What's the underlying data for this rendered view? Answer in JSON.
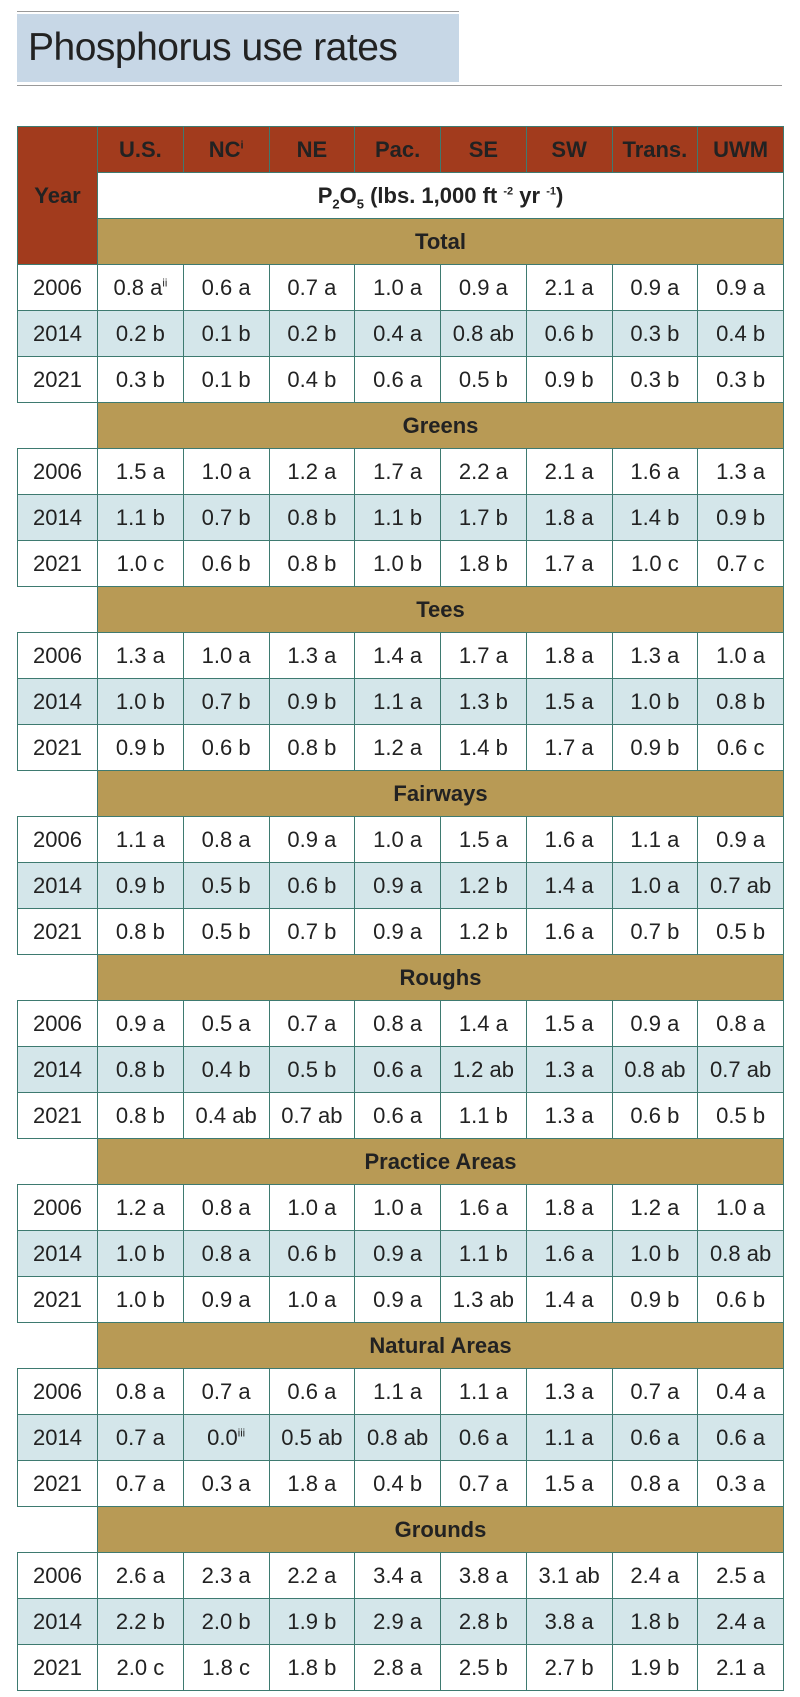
{
  "title": "Phosphorus use rates",
  "header": {
    "year_label": "Year",
    "regions": [
      {
        "label": "U.S.",
        "sup": ""
      },
      {
        "label": "NC",
        "sup": "i"
      },
      {
        "label": "NE",
        "sup": ""
      },
      {
        "label": "Pac.",
        "sup": ""
      },
      {
        "label": "SE",
        "sup": ""
      },
      {
        "label": "SW",
        "sup": ""
      },
      {
        "label": "Trans.",
        "sup": ""
      },
      {
        "label": "UWM",
        "sup": ""
      }
    ],
    "units": {
      "p": "P",
      "sub1": "2",
      "o": "O",
      "sub2": "5",
      "rest": " (lbs. 1,000 ft ",
      "exp1": "-2",
      "mid": " yr ",
      "exp2": "-1",
      "end": ")"
    }
  },
  "sections": [
    {
      "name": "Total",
      "rows": [
        {
          "year": "2006",
          "cells": [
            {
              "v": "0.8 a",
              "sup": "ii"
            },
            {
              "v": "0.6 a"
            },
            {
              "v": "0.7 a"
            },
            {
              "v": "1.0 a"
            },
            {
              "v": "0.9 a"
            },
            {
              "v": "2.1 a"
            },
            {
              "v": "0.9 a"
            },
            {
              "v": "0.9 a"
            }
          ]
        },
        {
          "year": "2014",
          "cells": [
            {
              "v": "0.2 b"
            },
            {
              "v": "0.1 b"
            },
            {
              "v": "0.2 b"
            },
            {
              "v": "0.4 a"
            },
            {
              "v": "0.8 ab"
            },
            {
              "v": "0.6 b"
            },
            {
              "v": "0.3 b"
            },
            {
              "v": "0.4 b"
            }
          ]
        },
        {
          "year": "2021",
          "cells": [
            {
              "v": "0.3 b"
            },
            {
              "v": "0.1 b"
            },
            {
              "v": "0.4 b"
            },
            {
              "v": "0.6 a"
            },
            {
              "v": "0.5 b"
            },
            {
              "v": "0.9 b"
            },
            {
              "v": "0.3 b"
            },
            {
              "v": "0.3 b"
            }
          ]
        }
      ]
    },
    {
      "name": "Greens",
      "rows": [
        {
          "year": "2006",
          "cells": [
            {
              "v": "1.5 a"
            },
            {
              "v": "1.0 a"
            },
            {
              "v": "1.2 a"
            },
            {
              "v": "1.7 a"
            },
            {
              "v": "2.2 a"
            },
            {
              "v": "2.1 a"
            },
            {
              "v": "1.6 a"
            },
            {
              "v": "1.3 a"
            }
          ]
        },
        {
          "year": "2014",
          "cells": [
            {
              "v": "1.1 b"
            },
            {
              "v": "0.7 b"
            },
            {
              "v": "0.8 b"
            },
            {
              "v": "1.1 b"
            },
            {
              "v": "1.7 b"
            },
            {
              "v": "1.8 a"
            },
            {
              "v": "1.4 b"
            },
            {
              "v": "0.9 b"
            }
          ]
        },
        {
          "year": "2021",
          "cells": [
            {
              "v": "1.0 c"
            },
            {
              "v": "0.6 b"
            },
            {
              "v": "0.8 b"
            },
            {
              "v": "1.0 b"
            },
            {
              "v": "1.8 b"
            },
            {
              "v": "1.7 a"
            },
            {
              "v": "1.0 c"
            },
            {
              "v": "0.7 c"
            }
          ]
        }
      ]
    },
    {
      "name": "Tees",
      "rows": [
        {
          "year": "2006",
          "cells": [
            {
              "v": "1.3 a"
            },
            {
              "v": "1.0 a"
            },
            {
              "v": "1.3 a"
            },
            {
              "v": "1.4 a"
            },
            {
              "v": "1.7 a"
            },
            {
              "v": "1.8 a"
            },
            {
              "v": "1.3 a"
            },
            {
              "v": "1.0 a"
            }
          ]
        },
        {
          "year": "2014",
          "cells": [
            {
              "v": "1.0 b"
            },
            {
              "v": "0.7 b"
            },
            {
              "v": "0.9 b"
            },
            {
              "v": "1.1 a"
            },
            {
              "v": "1.3 b"
            },
            {
              "v": "1.5 a"
            },
            {
              "v": "1.0 b"
            },
            {
              "v": "0.8 b"
            }
          ]
        },
        {
          "year": "2021",
          "cells": [
            {
              "v": "0.9 b"
            },
            {
              "v": "0.6 b"
            },
            {
              "v": "0.8 b"
            },
            {
              "v": "1.2 a"
            },
            {
              "v": "1.4 b"
            },
            {
              "v": "1.7 a"
            },
            {
              "v": "0.9 b"
            },
            {
              "v": "0.6 c"
            }
          ]
        }
      ]
    },
    {
      "name": "Fairways",
      "rows": [
        {
          "year": "2006",
          "cells": [
            {
              "v": "1.1 a"
            },
            {
              "v": "0.8 a"
            },
            {
              "v": "0.9 a"
            },
            {
              "v": "1.0 a"
            },
            {
              "v": "1.5 a"
            },
            {
              "v": "1.6 a"
            },
            {
              "v": "1.1 a"
            },
            {
              "v": "0.9 a"
            }
          ]
        },
        {
          "year": "2014",
          "cells": [
            {
              "v": "0.9 b"
            },
            {
              "v": "0.5 b"
            },
            {
              "v": "0.6 b"
            },
            {
              "v": "0.9 a"
            },
            {
              "v": "1.2 b"
            },
            {
              "v": "1.4 a"
            },
            {
              "v": "1.0 a"
            },
            {
              "v": "0.7 ab"
            }
          ]
        },
        {
          "year": "2021",
          "cells": [
            {
              "v": "0.8 b"
            },
            {
              "v": "0.5 b"
            },
            {
              "v": "0.7 b"
            },
            {
              "v": "0.9 a"
            },
            {
              "v": "1.2 b"
            },
            {
              "v": "1.6 a"
            },
            {
              "v": "0.7 b"
            },
            {
              "v": "0.5 b"
            }
          ]
        }
      ]
    },
    {
      "name": "Roughs",
      "rows": [
        {
          "year": "2006",
          "cells": [
            {
              "v": "0.9 a"
            },
            {
              "v": "0.5 a"
            },
            {
              "v": "0.7 a"
            },
            {
              "v": "0.8 a"
            },
            {
              "v": "1.4 a"
            },
            {
              "v": "1.5 a"
            },
            {
              "v": "0.9 a"
            },
            {
              "v": "0.8 a"
            }
          ]
        },
        {
          "year": "2014",
          "cells": [
            {
              "v": "0.8 b"
            },
            {
              "v": "0.4 b"
            },
            {
              "v": "0.5 b"
            },
            {
              "v": "0.6 a"
            },
            {
              "v": "1.2 ab"
            },
            {
              "v": "1.3 a"
            },
            {
              "v": "0.8 ab"
            },
            {
              "v": "0.7 ab"
            }
          ]
        },
        {
          "year": "2021",
          "cells": [
            {
              "v": "0.8 b"
            },
            {
              "v": "0.4 ab"
            },
            {
              "v": "0.7 ab"
            },
            {
              "v": "0.6 a"
            },
            {
              "v": "1.1 b"
            },
            {
              "v": "1.3 a"
            },
            {
              "v": "0.6 b"
            },
            {
              "v": "0.5 b"
            }
          ]
        }
      ]
    },
    {
      "name": "Practice Areas",
      "rows": [
        {
          "year": "2006",
          "cells": [
            {
              "v": "1.2 a"
            },
            {
              "v": "0.8 a"
            },
            {
              "v": "1.0 a"
            },
            {
              "v": "1.0 a"
            },
            {
              "v": "1.6 a"
            },
            {
              "v": "1.8 a"
            },
            {
              "v": "1.2 a"
            },
            {
              "v": "1.0 a"
            }
          ]
        },
        {
          "year": "2014",
          "cells": [
            {
              "v": "1.0 b"
            },
            {
              "v": "0.8 a"
            },
            {
              "v": "0.6 b"
            },
            {
              "v": "0.9 a"
            },
            {
              "v": "1.1 b"
            },
            {
              "v": "1.6 a"
            },
            {
              "v": "1.0 b"
            },
            {
              "v": "0.8 ab"
            }
          ]
        },
        {
          "year": "2021",
          "cells": [
            {
              "v": "1.0 b"
            },
            {
              "v": "0.9 a"
            },
            {
              "v": "1.0 a"
            },
            {
              "v": "0.9 a"
            },
            {
              "v": "1.3 ab"
            },
            {
              "v": "1.4 a"
            },
            {
              "v": "0.9 b"
            },
            {
              "v": "0.6 b"
            }
          ]
        }
      ]
    },
    {
      "name": "Natural Areas",
      "rows": [
        {
          "year": "2006",
          "cells": [
            {
              "v": "0.8 a"
            },
            {
              "v": "0.7 a"
            },
            {
              "v": "0.6 a"
            },
            {
              "v": "1.1 a"
            },
            {
              "v": "1.1 a"
            },
            {
              "v": "1.3 a"
            },
            {
              "v": "0.7 a"
            },
            {
              "v": "0.4 a"
            }
          ]
        },
        {
          "year": "2014",
          "cells": [
            {
              "v": "0.7 a"
            },
            {
              "v": "0.0",
              "sup": "iii"
            },
            {
              "v": "0.5 ab"
            },
            {
              "v": "0.8 ab"
            },
            {
              "v": "0.6 a"
            },
            {
              "v": "1.1 a"
            },
            {
              "v": "0.6 a"
            },
            {
              "v": "0.6 a"
            }
          ]
        },
        {
          "year": "2021",
          "cells": [
            {
              "v": "0.7 a"
            },
            {
              "v": "0.3 a"
            },
            {
              "v": "1.8 a"
            },
            {
              "v": "0.4 b"
            },
            {
              "v": "0.7 a"
            },
            {
              "v": "1.5 a"
            },
            {
              "v": "0.8 a"
            },
            {
              "v": "0.3 a"
            }
          ]
        }
      ]
    },
    {
      "name": "Grounds",
      "rows": [
        {
          "year": "2006",
          "cells": [
            {
              "v": "2.6 a"
            },
            {
              "v": "2.3 a"
            },
            {
              "v": "2.2 a"
            },
            {
              "v": "3.4 a"
            },
            {
              "v": "3.8 a"
            },
            {
              "v": "3.1 ab"
            },
            {
              "v": "2.4 a"
            },
            {
              "v": "2.5 a"
            }
          ]
        },
        {
          "year": "2014",
          "cells": [
            {
              "v": "2.2 b"
            },
            {
              "v": "2.0 b"
            },
            {
              "v": "1.9 b"
            },
            {
              "v": "2.9 a"
            },
            {
              "v": "2.8 b"
            },
            {
              "v": "3.8 a"
            },
            {
              "v": "1.8 b"
            },
            {
              "v": "2.4 a"
            }
          ]
        },
        {
          "year": "2021",
          "cells": [
            {
              "v": "2.0 c"
            },
            {
              "v": "1.8 c"
            },
            {
              "v": "1.8 b"
            },
            {
              "v": "2.8 a"
            },
            {
              "v": "2.5 b"
            },
            {
              "v": "2.7 b"
            },
            {
              "v": "1.9 b"
            },
            {
              "v": "2.1 a"
            }
          ]
        }
      ]
    }
  ]
}
